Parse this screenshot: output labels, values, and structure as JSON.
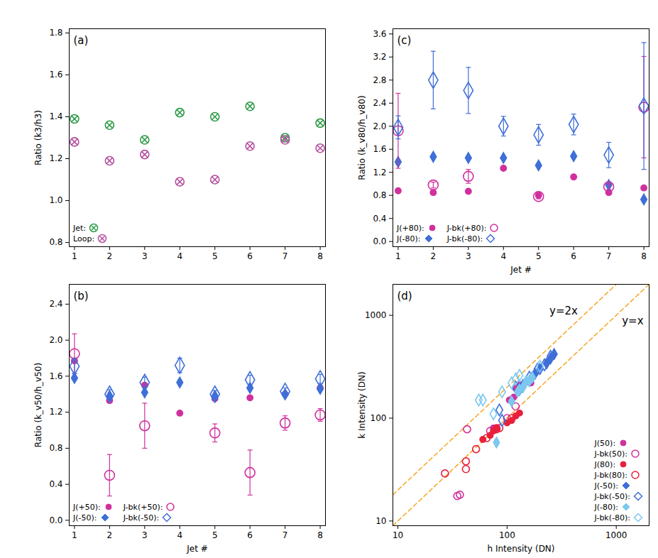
{
  "chart_data": [
    {
      "type": "scatter",
      "title": "(a)",
      "y_label": "Ratio (k3/h3)",
      "x": [
        1,
        2,
        3,
        4,
        5,
        6,
        7,
        8
      ],
      "xlim": [
        0.85,
        8.15
      ],
      "xticks": [
        1,
        2,
        3,
        4,
        5,
        6,
        7,
        8
      ],
      "ylim": [
        0.78,
        1.82
      ],
      "yticks": [
        0.8,
        {
          "value": 1,
          "label": "1.0"
        },
        1.2,
        1.4,
        1.6,
        1.8
      ],
      "legend": "lower left",
      "series": [
        {
          "name": "Jet:",
          "color": "#2e9a47",
          "marker": "circle-x",
          "values": [
            1.39,
            1.36,
            1.29,
            1.42,
            1.4,
            1.45,
            1.3,
            1.37
          ]
        },
        {
          "name": "Loop:",
          "color": "#b5509e",
          "marker": "circle-x",
          "values": [
            1.28,
            1.19,
            1.22,
            1.09,
            1.1,
            1.26,
            1.29,
            1.25
          ]
        }
      ]
    },
    {
      "type": "scatter",
      "title": "(b)",
      "x_label": "Jet #",
      "y_label": "Ratio (k_v50/h_v50)",
      "x": [
        1,
        2,
        3,
        4,
        5,
        6,
        7,
        8
      ],
      "xlim": [
        0.85,
        8.15
      ],
      "xticks": [
        1,
        2,
        3,
        4,
        5,
        6,
        7,
        8
      ],
      "ylim": [
        -0.06,
        2.62
      ],
      "yticks": [
        {
          "value": 0,
          "label": "0.0"
        },
        0.4,
        0.8,
        1.2,
        1.6,
        {
          "value": 2,
          "label": "2.0"
        },
        2.4
      ],
      "legend": "lower left",
      "series": [
        {
          "name": "J(+50):",
          "color": "#d0309e",
          "marker": "circle",
          "values": [
            1.77,
            1.33,
            1.5,
            1.19,
            1.35,
            1.36,
            1.4,
            1.47
          ]
        },
        {
          "name": "J(-50):",
          "color": "#3f6fd8",
          "marker": "diamond",
          "values": [
            1.58,
            1.38,
            1.42,
            1.53,
            1.38,
            1.47,
            1.4,
            1.46
          ]
        },
        {
          "name": "J-bk(+50):",
          "color": "#d0309e",
          "marker": "circle-open",
          "values": [
            1.85,
            0.5,
            1.05,
            null,
            0.97,
            0.53,
            1.08,
            1.17
          ],
          "errors": [
            0.22,
            0.23,
            0.25,
            null,
            0.1,
            0.25,
            0.08,
            0.07
          ]
        },
        {
          "name": "J-bk(-50):",
          "color": "#3f6fd8",
          "marker": "diamond-open",
          "values": [
            1.71,
            1.4,
            1.53,
            1.72,
            1.4,
            1.56,
            1.43,
            1.57
          ],
          "errors": [
            0.08,
            0.05,
            0.06,
            0.08,
            0.04,
            0.05,
            0.04,
            0.05
          ]
        }
      ]
    },
    {
      "type": "scatter",
      "title": "(c)",
      "x_label": "Jet #",
      "y_label": "Ratio (k_v80/h_v80)",
      "x": [
        1,
        2,
        3,
        4,
        5,
        6,
        7,
        8
      ],
      "xlim": [
        0.85,
        8.15
      ],
      "xticks": [
        1,
        2,
        3,
        4,
        5,
        6,
        7,
        8
      ],
      "ylim": [
        -0.09,
        3.69
      ],
      "yticks": [
        {
          "value": 0,
          "label": "0.0"
        },
        0.4,
        0.8,
        1.2,
        1.6,
        {
          "value": 2,
          "label": "2.0"
        },
        2.4,
        2.8,
        3.2,
        3.6
      ],
      "legend": "lower left",
      "series": [
        {
          "name": "J(+80):",
          "color": "#d0309e",
          "marker": "circle",
          "values": [
            0.88,
            0.85,
            0.87,
            1.27,
            0.8,
            1.12,
            0.85,
            0.93
          ]
        },
        {
          "name": "J(-80):",
          "color": "#3f6fd8",
          "marker": "diamond",
          "values": [
            1.38,
            1.47,
            1.45,
            1.45,
            1.32,
            1.48,
            0.98,
            0.73
          ]
        },
        {
          "name": "J-bk(+80):",
          "color": "#d0309e",
          "marker": "circle-open",
          "values": [
            1.92,
            0.98,
            1.13,
            null,
            0.78,
            null,
            0.95,
            2.33
          ],
          "errors": [
            0.65,
            0.05,
            0.12,
            null,
            0.04,
            null,
            0.05,
            0.88
          ]
        },
        {
          "name": "J-bk(-80):",
          "color": "#3f6fd8",
          "marker": "diamond-open",
          "values": [
            1.98,
            2.8,
            2.62,
            2.0,
            1.85,
            2.03,
            1.5,
            2.35
          ],
          "errors": [
            0.2,
            0.5,
            0.4,
            0.17,
            0.18,
            0.18,
            0.22,
            1.1
          ]
        }
      ]
    },
    {
      "type": "scatter",
      "title": "(d)",
      "x_label": "h Intensity (DN)",
      "y_label": "k Intensity (DN)",
      "log": true,
      "xlim": [
        9,
        2000
      ],
      "ylim": [
        9,
        2000
      ],
      "xticks": [
        10,
        100,
        1000
      ],
      "yticks": [
        10,
        100,
        1000
      ],
      "legend": "lower right",
      "annotations": [
        {
          "text": "y=2x",
          "slope": 2,
          "color": "#f5a623",
          "line_style": "dashed"
        },
        {
          "text": "y=x",
          "slope": 1,
          "color": "#f5a623",
          "line_style": "dashed"
        }
      ],
      "series": [
        {
          "name": "J(50):",
          "color": "#d0309e",
          "marker": "circle",
          "x": [
            115,
            120,
            130,
            145,
            155,
            165,
            75,
            105
          ],
          "values": [
            160,
            195,
            210,
            220,
            225,
            220,
            80,
            150
          ]
        },
        {
          "name": "J-bk(50):",
          "color": "#d0309e",
          "marker": "circle-open",
          "x": [
            43,
            37,
            35,
            70,
            80,
            100,
            120,
            130
          ],
          "values": [
            78,
            18,
            17.5,
            75,
            80,
            100,
            130,
            190
          ]
        },
        {
          "name": "J(80):",
          "color": "#e8203c",
          "marker": "circle",
          "x": [
            60,
            70,
            80,
            100,
            110,
            120,
            130,
            75
          ],
          "values": [
            62,
            68,
            80,
            90,
            95,
            105,
            112,
            75
          ]
        },
        {
          "name": "J-bk(80):",
          "color": "#e8203c",
          "marker": "circle-open",
          "x": [
            27,
            42,
            42,
            52,
            80,
            85,
            110,
            65
          ],
          "values": [
            29,
            38,
            32,
            50,
            78,
            80,
            100,
            64
          ]
        },
        {
          "name": "J(-50):",
          "color": "#3f6fd8",
          "marker": "diamond",
          "x": [
            160,
            170,
            200,
            250,
            270,
            230,
            140,
            180
          ],
          "values": [
            230,
            250,
            300,
            380,
            420,
            340,
            210,
            270
          ]
        },
        {
          "name": "J-bk(-50):",
          "color": "#3f6fd8",
          "marker": "diamond-open",
          "x": [
            90,
            85,
            120,
            130,
            160,
            190,
            220,
            250
          ],
          "values": [
            95,
            120,
            200,
            190,
            250,
            300,
            330,
            400
          ]
        },
        {
          "name": "J(-80):",
          "color": "#7cc8f0",
          "marker": "diamond",
          "x": [
            80,
            110,
            130,
            125,
            150,
            170,
            140,
            160
          ],
          "values": [
            58,
            145,
            190,
            180,
            230,
            250,
            200,
            230
          ]
        },
        {
          "name": "J-bk(-80):",
          "color": "#7cc8f0",
          "marker": "diamond-open",
          "x": [
            55,
            60,
            90,
            110,
            130,
            120,
            200,
            75
          ],
          "values": [
            150,
            150,
            180,
            220,
            260,
            240,
            320,
            110
          ]
        }
      ]
    }
  ]
}
